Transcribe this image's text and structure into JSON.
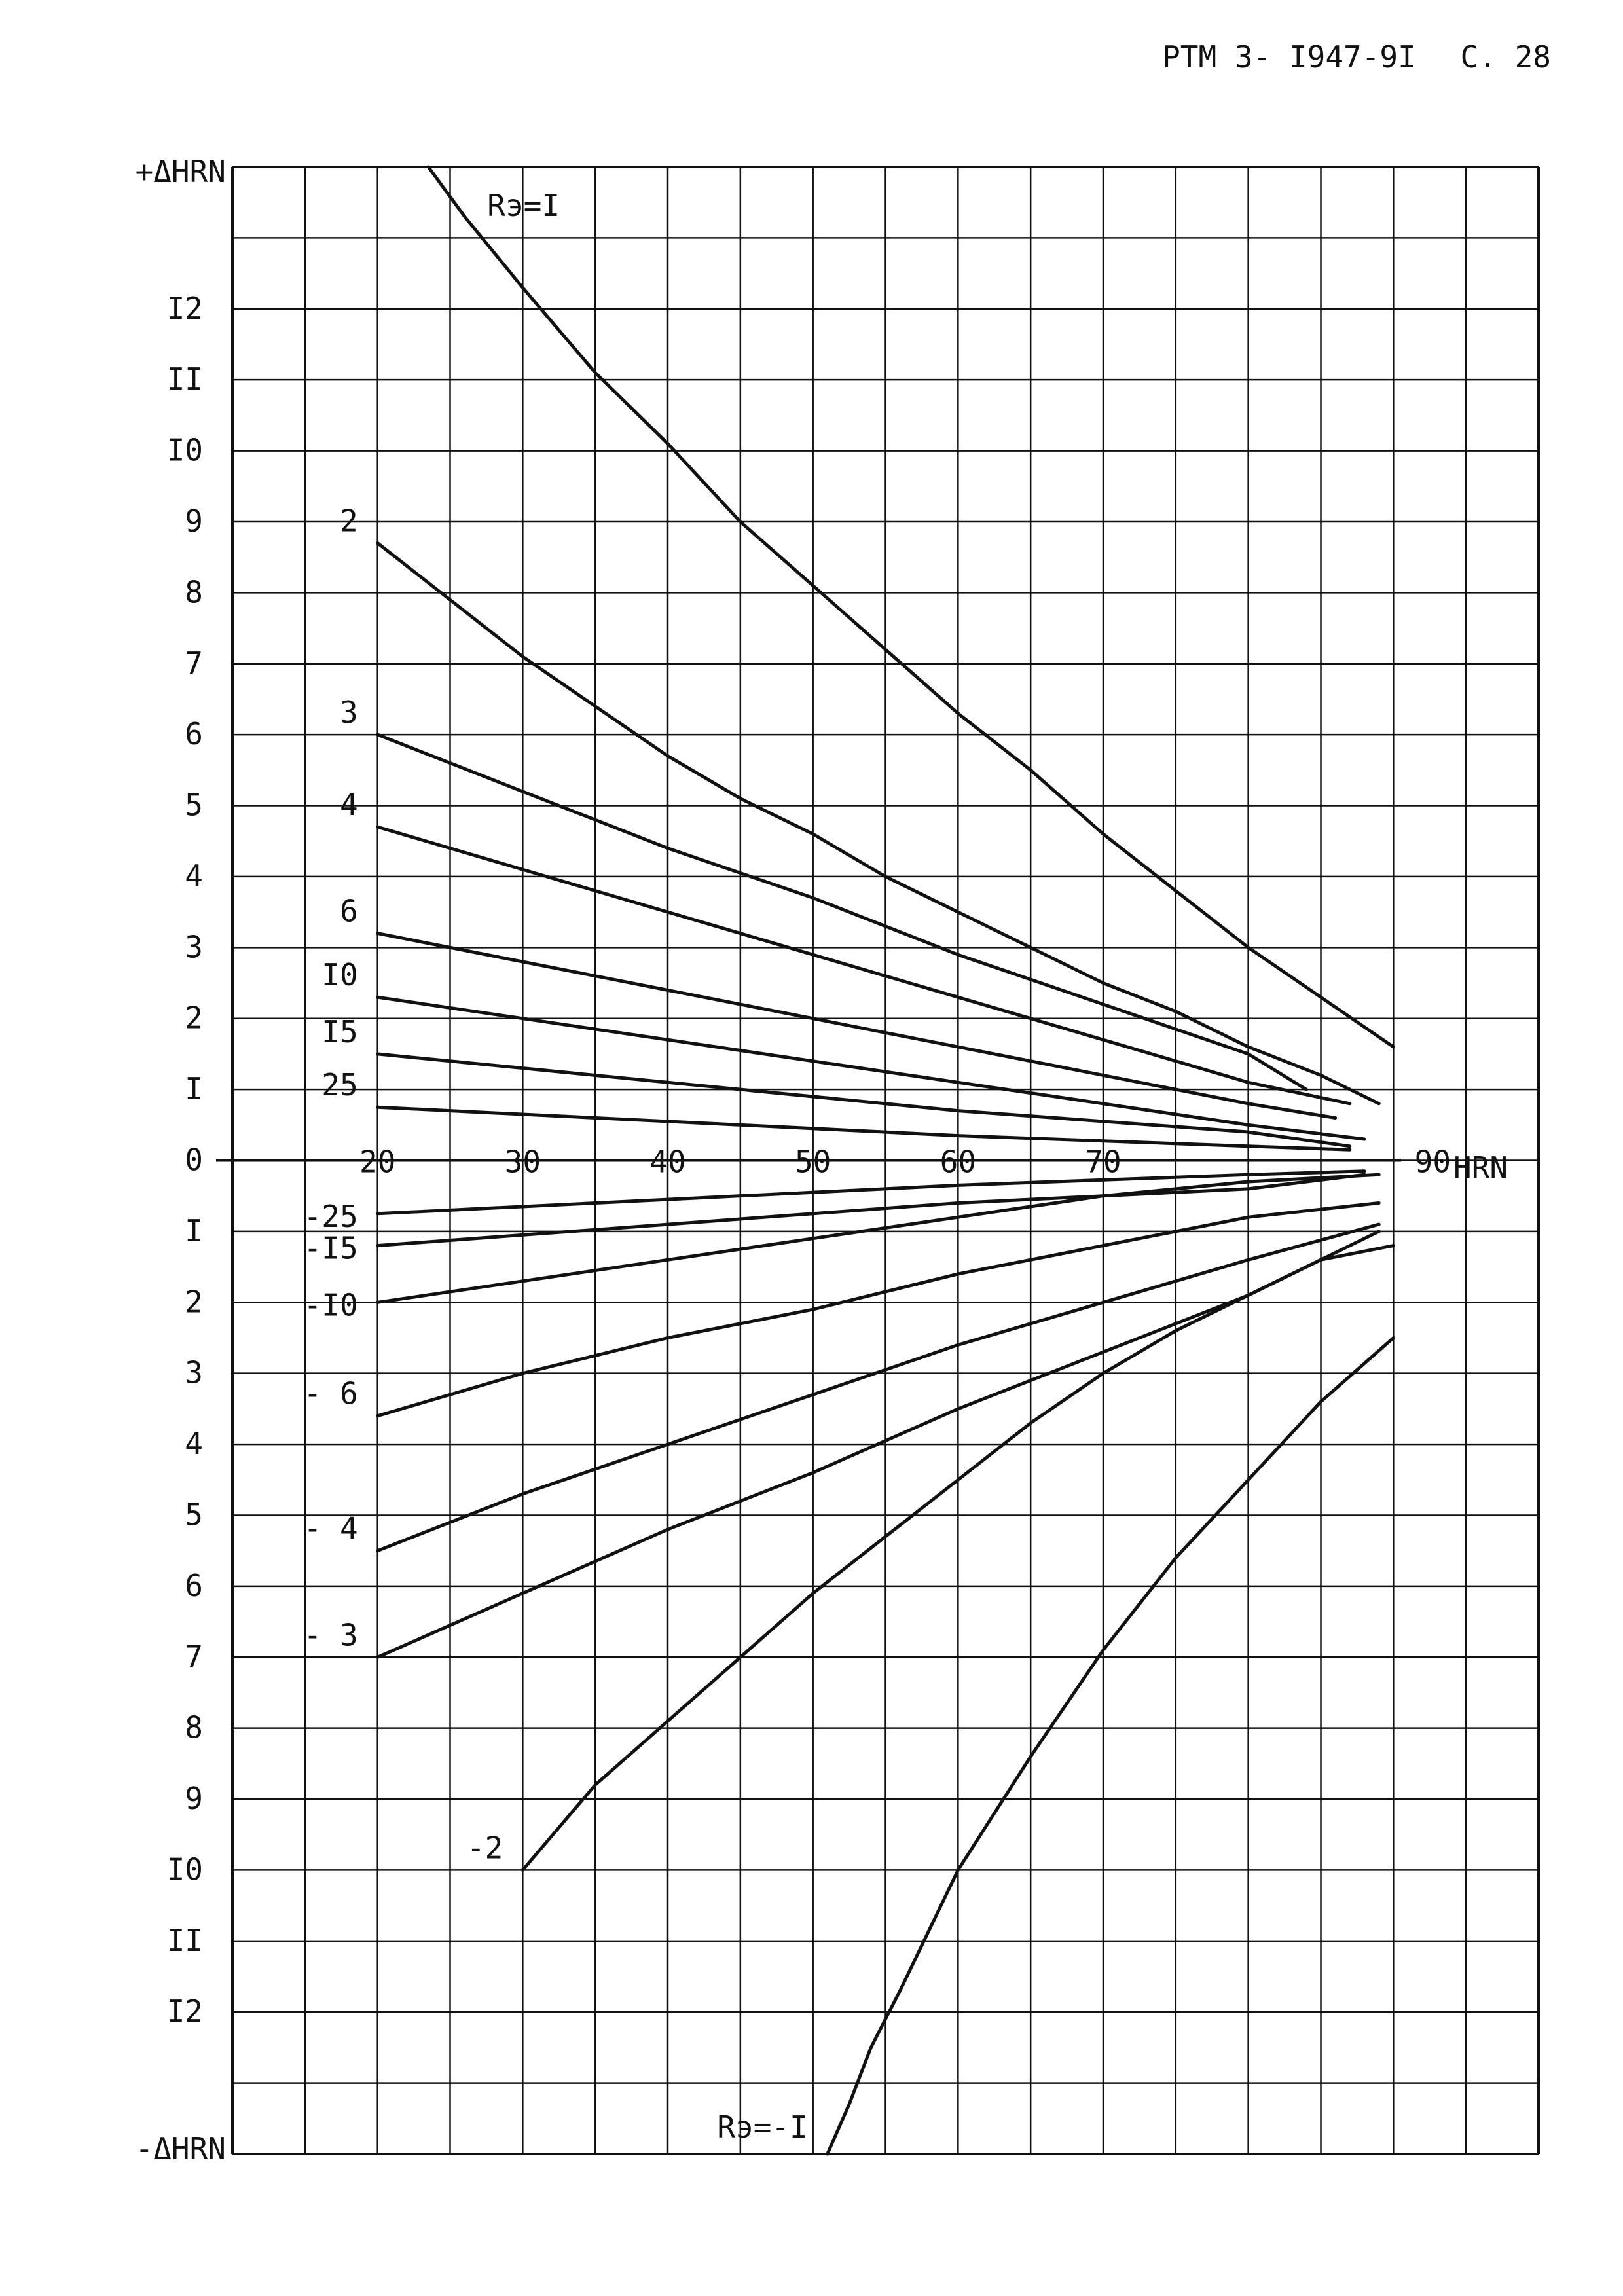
{
  "header": {
    "doc_code": "PTM 3- I947-9I",
    "page_label": "C. 28"
  },
  "chart_data": {
    "type": "line",
    "title": "",
    "ylabel_top": "+ΔHRN",
    "ylabel_bottom": "-ΔHRN",
    "x_unit_label": "HRN",
    "xlim": [
      10,
      100
    ],
    "ylim": [
      -14,
      14
    ],
    "grid": true,
    "x_tick_labels": [
      {
        "value": 20,
        "label": "20"
      },
      {
        "value": 30,
        "label": "30"
      },
      {
        "value": 40,
        "label": "40"
      },
      {
        "value": 50,
        "label": "50"
      },
      {
        "value": 60,
        "label": "60"
      },
      {
        "value": 70,
        "label": "70"
      },
      {
        "value": 90,
        "label": "90"
      }
    ],
    "y_tick_labels": [
      {
        "value": 12,
        "label": "I2"
      },
      {
        "value": 11,
        "label": "II"
      },
      {
        "value": 10,
        "label": "I0"
      },
      {
        "value": 9,
        "label": "9"
      },
      {
        "value": 8,
        "label": "8"
      },
      {
        "value": 7,
        "label": "7"
      },
      {
        "value": 6,
        "label": "6"
      },
      {
        "value": 5,
        "label": "5"
      },
      {
        "value": 4,
        "label": "4"
      },
      {
        "value": 3,
        "label": "3"
      },
      {
        "value": 2,
        "label": "2"
      },
      {
        "value": 1,
        "label": "I"
      },
      {
        "value": 0,
        "label": "0"
      },
      {
        "value": -1,
        "label": "I"
      },
      {
        "value": -2,
        "label": "2"
      },
      {
        "value": -3,
        "label": "3"
      },
      {
        "value": -4,
        "label": "4"
      },
      {
        "value": -5,
        "label": "5"
      },
      {
        "value": -6,
        "label": "6"
      },
      {
        "value": -7,
        "label": "7"
      },
      {
        "value": -8,
        "label": "8"
      },
      {
        "value": -9,
        "label": "9"
      },
      {
        "value": -10,
        "label": "I0"
      },
      {
        "value": -11,
        "label": "II"
      },
      {
        "value": -12,
        "label": "I2"
      }
    ],
    "series": [
      {
        "name": "Rэ=I",
        "label": "Rэ=I",
        "label_pos": "curve",
        "points": [
          [
            23.5,
            14
          ],
          [
            26,
            13.3
          ],
          [
            30,
            12.3
          ],
          [
            35,
            11.1
          ],
          [
            40,
            10.1
          ],
          [
            45,
            9.0
          ],
          [
            50,
            8.1
          ],
          [
            55,
            7.2
          ],
          [
            60,
            6.3
          ],
          [
            65,
            5.5
          ],
          [
            70,
            4.6
          ],
          [
            75,
            3.8
          ],
          [
            80,
            3.0
          ],
          [
            85,
            2.3
          ],
          [
            90,
            1.6
          ]
        ]
      },
      {
        "name": "2",
        "label": "2",
        "label_pos": "left",
        "points": [
          [
            20,
            8.7
          ],
          [
            25,
            7.9
          ],
          [
            30,
            7.1
          ],
          [
            35,
            6.4
          ],
          [
            40,
            5.7
          ],
          [
            45,
            5.1
          ],
          [
            50,
            4.6
          ],
          [
            55,
            4.0
          ],
          [
            60,
            3.5
          ],
          [
            65,
            3.0
          ],
          [
            70,
            2.5
          ],
          [
            75,
            2.1
          ],
          [
            80,
            1.6
          ],
          [
            85,
            1.2
          ],
          [
            89,
            0.8
          ]
        ]
      },
      {
        "name": "3",
        "label": "3",
        "label_pos": "left",
        "points": [
          [
            20,
            6.0
          ],
          [
            30,
            5.2
          ],
          [
            40,
            4.4
          ],
          [
            50,
            3.7
          ],
          [
            60,
            2.9
          ],
          [
            70,
            2.2
          ],
          [
            80,
            1.5
          ],
          [
            84,
            1.0
          ]
        ]
      },
      {
        "name": "4",
        "label": "4",
        "label_pos": "left",
        "points": [
          [
            20,
            4.7
          ],
          [
            30,
            4.1
          ],
          [
            40,
            3.5
          ],
          [
            50,
            2.9
          ],
          [
            60,
            2.3
          ],
          [
            70,
            1.7
          ],
          [
            80,
            1.1
          ],
          [
            87,
            0.8
          ]
        ]
      },
      {
        "name": "6",
        "label": "6",
        "label_pos": "left",
        "points": [
          [
            20,
            3.2
          ],
          [
            30,
            2.8
          ],
          [
            40,
            2.4
          ],
          [
            50,
            2.0
          ],
          [
            60,
            1.6
          ],
          [
            70,
            1.2
          ],
          [
            80,
            0.8
          ],
          [
            86,
            0.6
          ]
        ]
      },
      {
        "name": "I0",
        "label": "I0",
        "label_pos": "left",
        "points": [
          [
            20,
            2.3
          ],
          [
            30,
            2.0
          ],
          [
            40,
            1.7
          ],
          [
            50,
            1.4
          ],
          [
            60,
            1.1
          ],
          [
            70,
            0.8
          ],
          [
            80,
            0.5
          ],
          [
            88,
            0.3
          ]
        ]
      },
      {
        "name": "I5",
        "label": "I5",
        "label_pos": "left",
        "points": [
          [
            20,
            1.5
          ],
          [
            40,
            1.1
          ],
          [
            60,
            0.7
          ],
          [
            80,
            0.4
          ],
          [
            87,
            0.2
          ]
        ]
      },
      {
        "name": "25",
        "label": "25",
        "label_pos": "left",
        "points": [
          [
            20,
            0.75
          ],
          [
            40,
            0.55
          ],
          [
            60,
            0.35
          ],
          [
            80,
            0.2
          ],
          [
            87,
            0.15
          ]
        ]
      },
      {
        "name": "-25",
        "label": "-25",
        "label_pos": "left",
        "points": [
          [
            20,
            -0.75
          ],
          [
            40,
            -0.55
          ],
          [
            60,
            -0.35
          ],
          [
            80,
            -0.2
          ],
          [
            88,
            -0.15
          ]
        ]
      },
      {
        "name": "-I5",
        "label": "-I5",
        "label_pos": "left",
        "points": [
          [
            20,
            -1.2
          ],
          [
            40,
            -0.9
          ],
          [
            60,
            -0.6
          ],
          [
            80,
            -0.4
          ],
          [
            88,
            -0.2
          ]
        ]
      },
      {
        "name": "-I0",
        "label": "-I0",
        "label_pos": "left",
        "points": [
          [
            20,
            -2.0
          ],
          [
            30,
            -1.7
          ],
          [
            40,
            -1.4
          ],
          [
            50,
            -1.1
          ],
          [
            60,
            -0.8
          ],
          [
            70,
            -0.5
          ],
          [
            80,
            -0.3
          ],
          [
            89,
            -0.2
          ]
        ]
      },
      {
        "name": "-6",
        "label": "- 6",
        "label_pos": "left",
        "points": [
          [
            20,
            -3.6
          ],
          [
            30,
            -3.0
          ],
          [
            40,
            -2.5
          ],
          [
            50,
            -2.1
          ],
          [
            60,
            -1.6
          ],
          [
            70,
            -1.2
          ],
          [
            80,
            -0.8
          ],
          [
            89,
            -0.6
          ]
        ]
      },
      {
        "name": "-4",
        "label": "- 4",
        "label_pos": "left",
        "points": [
          [
            20,
            -5.5
          ],
          [
            30,
            -4.7
          ],
          [
            40,
            -4.0
          ],
          [
            50,
            -3.3
          ],
          [
            60,
            -2.6
          ],
          [
            70,
            -2.0
          ],
          [
            80,
            -1.4
          ],
          [
            89,
            -0.9
          ]
        ]
      },
      {
        "name": "-3",
        "label": "- 3",
        "label_pos": "left",
        "points": [
          [
            20,
            -7.0
          ],
          [
            30,
            -6.1
          ],
          [
            40,
            -5.2
          ],
          [
            50,
            -4.4
          ],
          [
            60,
            -3.5
          ],
          [
            70,
            -2.7
          ],
          [
            80,
            -1.9
          ],
          [
            89,
            -1.0
          ]
        ]
      },
      {
        "name": "-2",
        "label": "-2",
        "label_pos": "left",
        "points": [
          [
            30,
            -10.0
          ],
          [
            35,
            -8.8
          ],
          [
            40,
            -7.9
          ],
          [
            45,
            -7.0
          ],
          [
            50,
            -6.1
          ],
          [
            55,
            -5.3
          ],
          [
            60,
            -4.5
          ],
          [
            65,
            -3.7
          ],
          [
            70,
            -3.0
          ],
          [
            75,
            -2.4
          ],
          [
            80,
            -1.9
          ],
          [
            85,
            -1.4
          ],
          [
            90,
            -1.2
          ]
        ]
      },
      {
        "name": "Rэ=-I",
        "label": "Rэ=-I",
        "label_pos": "curve",
        "points": [
          [
            51,
            -14
          ],
          [
            52.5,
            -13.3
          ],
          [
            54,
            -12.5
          ],
          [
            56,
            -11.7
          ],
          [
            60,
            -10.0
          ],
          [
            65,
            -8.4
          ],
          [
            70,
            -6.9
          ],
          [
            75,
            -5.6
          ],
          [
            80,
            -4.5
          ],
          [
            85,
            -3.4
          ],
          [
            90,
            -2.5
          ]
        ]
      }
    ]
  }
}
